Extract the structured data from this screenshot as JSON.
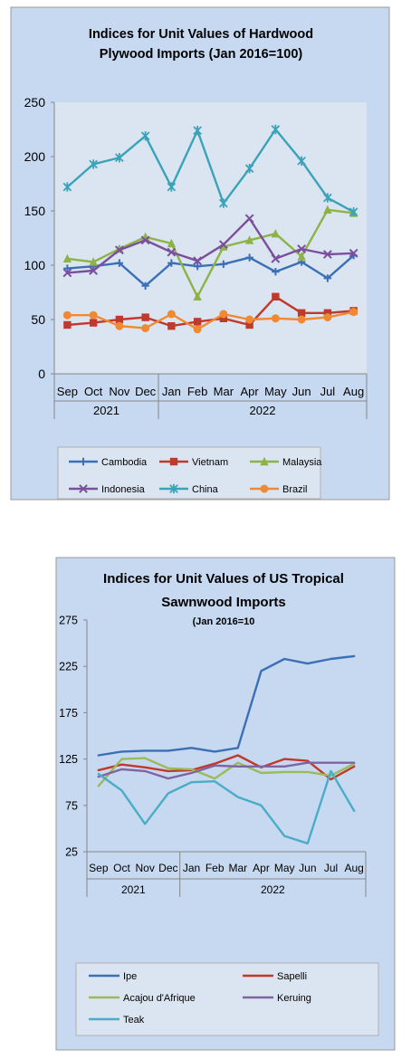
{
  "charts": [
    {
      "title_line1": "Indices for Unit Values of Hardwood",
      "title_line2": "Plywood Imports (Jan 2016=100)",
      "subtitle": "",
      "colors": {
        "background": "#c6d9f1",
        "plot": "#dbe5f1"
      },
      "chart_data": {
        "type": "line",
        "title": "Indices for Unit Values of Hardwood Plywood Imports (Jan 2016=100)",
        "xlabel": "",
        "ylabel": "",
        "categories": [
          "Sep",
          "Oct",
          "Nov",
          "Dec",
          "Jan",
          "Feb",
          "Mar",
          "Apr",
          "May",
          "Jun",
          "Jul",
          "Aug"
        ],
        "year_groups": [
          {
            "label": "2021",
            "start": 0,
            "end": 3
          },
          {
            "label": "2022",
            "start": 4,
            "end": 11
          }
        ],
        "ylim": [
          0,
          250
        ],
        "yticks": [
          0,
          50,
          100,
          150,
          200,
          250
        ],
        "grid": false,
        "legend_position": "bottom",
        "series": [
          {
            "name": "Cambodia",
            "color": "#3b6fb6",
            "marker": "plus",
            "values": [
              97,
              99,
              102,
              81,
              102,
              99,
              101,
              107,
              94,
              103,
              88,
              109
            ]
          },
          {
            "name": "Vietnam",
            "color": "#c0392b",
            "marker": "square",
            "values": [
              45,
              47,
              50,
              52,
              44,
              48,
              51,
              45,
              71,
              56,
              56,
              58
            ]
          },
          {
            "name": "Malaysia",
            "color": "#8db347",
            "marker": "triangle",
            "values": [
              106,
              103,
              115,
              126,
              120,
              71,
              117,
              123,
              129,
              108,
              151,
              148
            ]
          },
          {
            "name": "Indonesia",
            "color": "#7b4f9d",
            "marker": "x",
            "values": [
              93,
              95,
              114,
              123,
              112,
              104,
              119,
              143,
              106,
              115,
              110,
              111
            ]
          },
          {
            "name": "China",
            "color": "#3aa3b8",
            "marker": "asterisk",
            "values": [
              172,
              193,
              199,
              219,
              172,
              224,
              157,
              189,
              225,
              196,
              162,
              149
            ]
          },
          {
            "name": "Brazil",
            "color": "#ef8a33",
            "marker": "circle",
            "values": [
              54,
              54,
              44,
              42,
              55,
              41,
              55,
              50,
              51,
              50,
              52,
              57
            ]
          }
        ]
      }
    },
    {
      "title_line1": "Indices for Unit Values of US Tropical",
      "title_line2": "Sawnwood Imports",
      "subtitle": "(Jan 2016=10",
      "colors": {
        "background": "#c6d9f1",
        "plot": "#c6d9f1"
      },
      "chart_data": {
        "type": "line",
        "title": "Indices for Unit Values of US Tropical Sawnwood Imports",
        "subtitle": "(Jan 2016=10",
        "xlabel": "",
        "ylabel": "",
        "categories": [
          "Sep",
          "Oct",
          "Nov",
          "Dec",
          "Jan",
          "Feb",
          "Mar",
          "Apr",
          "May",
          "Jun",
          "Jul",
          "Aug"
        ],
        "year_groups": [
          {
            "label": "2021",
            "start": 0,
            "end": 3
          },
          {
            "label": "2022",
            "start": 4,
            "end": 11
          }
        ],
        "ylim": [
          25,
          275
        ],
        "yticks": [
          25,
          75,
          125,
          175,
          225,
          275
        ],
        "grid": false,
        "legend_position": "bottom",
        "series": [
          {
            "name": "Ipe",
            "color": "#3b6fb6",
            "values": [
              129,
              133,
              134,
              134,
              137,
              133,
              137,
              220,
              233,
              228,
              233,
              236
            ]
          },
          {
            "name": "Sapelli",
            "color": "#c0392b",
            "values": [
              113,
              119,
              116,
              112,
              113,
              120,
              129,
              116,
              125,
              123,
              103,
              117
            ]
          },
          {
            "name": "Acajou d'Afrique",
            "color": "#9bbb59",
            "values": [
              96,
              125,
              126,
              115,
              114,
              104,
              121,
              110,
              111,
              111,
              107,
              120
            ]
          },
          {
            "name": "Keruing",
            "color": "#8064a2",
            "values": [
              106,
              114,
              112,
              104,
              110,
              118,
              117,
              117,
              117,
              121,
              121,
              121
            ]
          },
          {
            "name": "Teak",
            "color": "#4bacc6",
            "values": [
              109,
              91,
              55,
              88,
              100,
              101,
              84,
              75,
              42,
              34,
              112,
              69
            ]
          }
        ]
      }
    }
  ]
}
